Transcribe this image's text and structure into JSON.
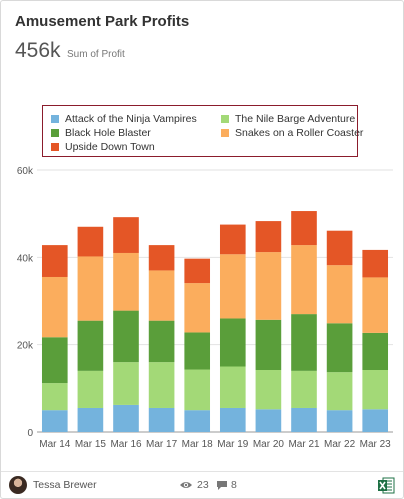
{
  "header": {
    "title": "Amusement Park Profits"
  },
  "metric": {
    "value": "456k",
    "label": "Sum of Profit"
  },
  "footer": {
    "author": "Tessa Brewer",
    "views": "23",
    "comments": "8"
  },
  "chart_data": {
    "type": "bar",
    "stacked": true,
    "categories": [
      "Mar 14",
      "Mar 15",
      "Mar 16",
      "Mar 17",
      "Mar 18",
      "Mar 19",
      "Mar 20",
      "Mar 21",
      "Mar 22",
      "Mar 23"
    ],
    "series": [
      {
        "name": "Attack of the Ninja Vampires",
        "color": "#74b3dd",
        "values": [
          5000,
          5500,
          6200,
          5500,
          5000,
          5500,
          5200,
          5500,
          5000,
          5200
        ]
      },
      {
        "name": "The Nile Barge Adventure",
        "color": "#a3d977",
        "values": [
          6200,
          8500,
          9800,
          10500,
          9300,
          9500,
          9000,
          8500,
          8700,
          9000
        ]
      },
      {
        "name": "Black Hole Blaster",
        "color": "#5a9e3a",
        "values": [
          10500,
          11500,
          11800,
          9500,
          8500,
          11000,
          11500,
          13000,
          11200,
          8500
        ]
      },
      {
        "name": "Snakes on a Roller Coaster",
        "color": "#fbad5d",
        "values": [
          13800,
          14700,
          13200,
          11500,
          11300,
          14700,
          15500,
          15800,
          13300,
          12700
        ]
      },
      {
        "name": "Upside Down Town",
        "color": "#e45626",
        "values": [
          7300,
          6800,
          8200,
          5800,
          5600,
          6800,
          7100,
          7800,
          7900,
          6300
        ]
      }
    ],
    "y_ticks": [
      "0",
      "20k",
      "40k",
      "60k"
    ],
    "ylim": [
      0,
      60000
    ],
    "legend_position": "top",
    "grid": true
  }
}
